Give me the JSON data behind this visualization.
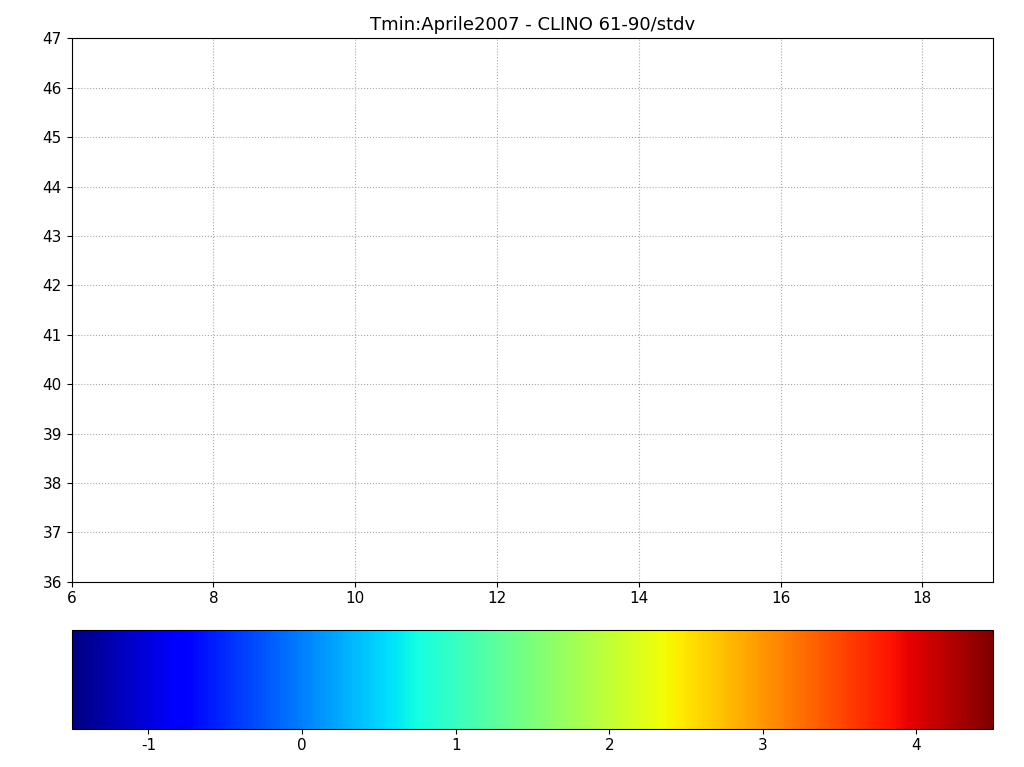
{
  "title": "Tmin:Aprile2007 - CLINO 61-90/stdv",
  "xlim": [
    6,
    19
  ],
  "ylim": [
    36,
    47
  ],
  "xticks": [
    6,
    8,
    10,
    12,
    14,
    16,
    18
  ],
  "yticks": [
    36,
    37,
    38,
    39,
    40,
    41,
    42,
    43,
    44,
    45,
    46,
    47
  ],
  "colorbar_ticks": [
    -1,
    0,
    1,
    2,
    3,
    4
  ],
  "vmin": -1.5,
  "vmax": 4.5,
  "cmap": "jet",
  "background_color": "#ffffff",
  "grid_color": "#aaaaaa",
  "grid_linestyle": "dotted",
  "title_fontsize": 13,
  "tick_fontsize": 11,
  "colorbar_fontsize": 11
}
